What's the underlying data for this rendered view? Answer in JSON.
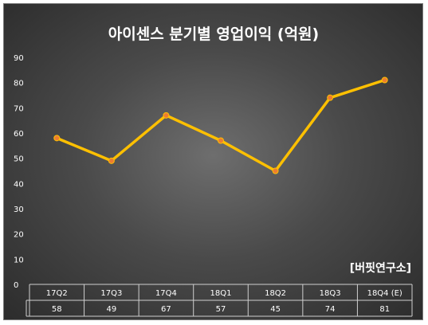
{
  "chart_data": {
    "type": "line",
    "title": "아이센스 분기별 영업이익 (억원)",
    "categories": [
      "17Q2",
      "17Q3",
      "17Q4",
      "18Q1",
      "18Q2",
      "18Q3",
      "18Q4 (E)"
    ],
    "values": [
      58,
      49,
      67,
      57,
      45,
      74,
      81
    ],
    "value_labels": [
      "58",
      "49",
      "67",
      "57",
      "45",
      "74",
      "81"
    ],
    "yticks": [
      "0",
      "10",
      "20",
      "30",
      "40",
      "50",
      "60",
      "70",
      "80",
      "90"
    ],
    "ylim": [
      0,
      90
    ],
    "grid": false,
    "data_table": true,
    "line_color": "#FFC000",
    "marker_color": "#ED7D31",
    "annotation": "[버핏연구소]"
  }
}
